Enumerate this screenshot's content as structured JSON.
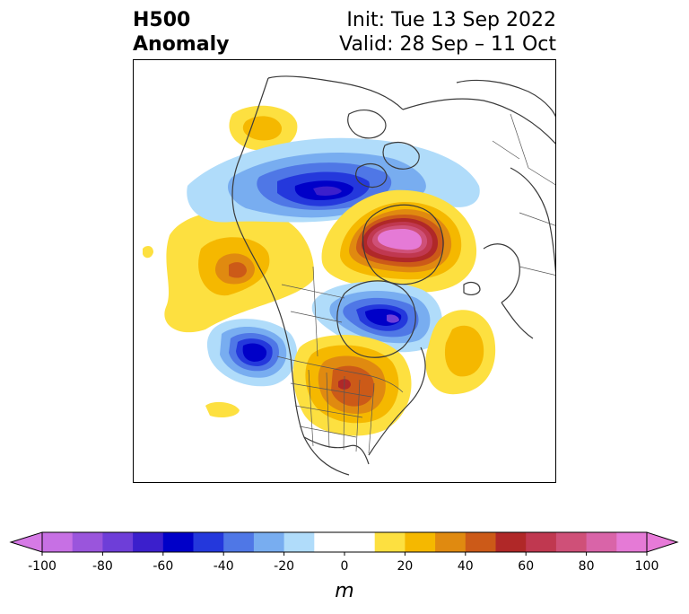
{
  "title": {
    "left_line1": "H500",
    "left_line2": "Anomaly",
    "right_line1": "Init: Tue 13 Sep 2022",
    "right_line2": "Valid: 28 Sep – 11 Oct"
  },
  "colorbar": {
    "unit": "m",
    "ticks": [
      "-100",
      "-80",
      "-60",
      "-40",
      "-20",
      "0",
      "20",
      "40",
      "60",
      "80",
      "100"
    ],
    "min_color": "#d67ae6",
    "max_color": "#e77ad8",
    "colors": [
      "#c770e4",
      "#9a55dc",
      "#6e3ed8",
      "#3b1fcc",
      "#0000c8",
      "#2438dc",
      "#4f77e6",
      "#78adf0",
      "#b0dcfa",
      "#ffffff",
      "#ffffff",
      "#fde040",
      "#f5b800",
      "#e08a10",
      "#cc5a18",
      "#b02828",
      "#c03850",
      "#cf5078",
      "#d964a8",
      "#e57ad6"
    ]
  },
  "map": {
    "projection": "north-polar-stereographic",
    "features": [
      "coastlines",
      "country borders",
      "us state borders"
    ]
  }
}
